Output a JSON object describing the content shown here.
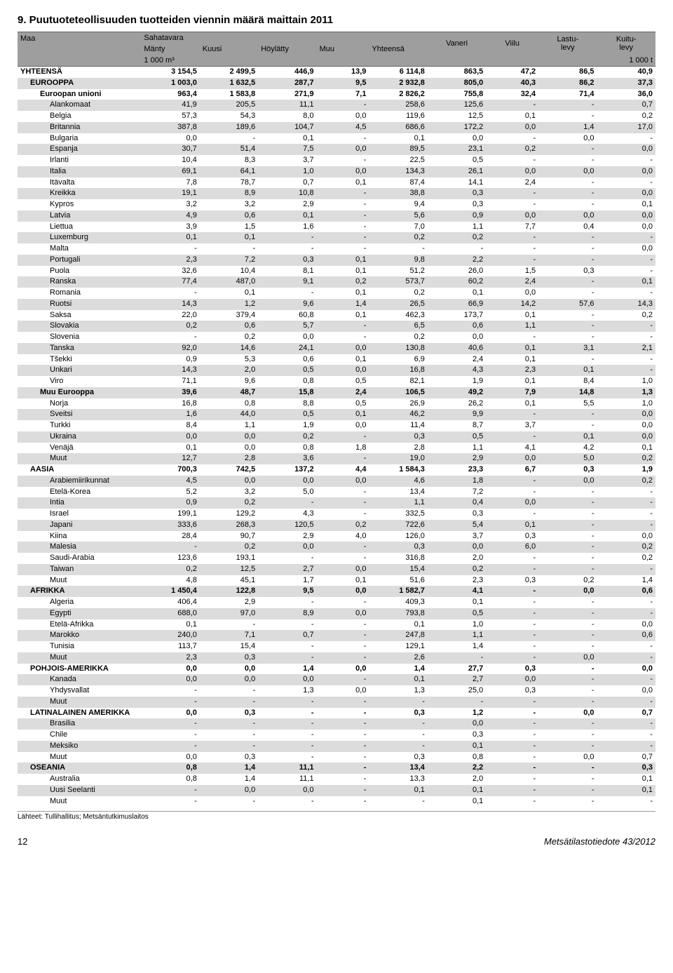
{
  "title": "9. Puutuoteteollisuuden tuotteiden viennin määrä maittain 2011",
  "header": {
    "group_sahatavara": "Sahatavara",
    "vaneri": "Vaneri",
    "viilu": "Viilu",
    "lastulevy": "Lastu-\nlevy",
    "kuitulevy": "Kuitu-\nlevy",
    "maa": "Maa",
    "manty": "Mänty",
    "kuusi": "Kuusi",
    "hoylatty": "Höylätty",
    "muu": "Muu",
    "yhteensa": "Yhteensä",
    "unit_left": "1 000 m³",
    "unit_right": "1 000 t"
  },
  "rows": [
    {
      "l": "YHTEENSÄ",
      "i": 0,
      "b": true,
      "z": false,
      "v": [
        "3 154,5",
        "2 499,5",
        "446,9",
        "13,9",
        "6 114,8",
        "863,5",
        "47,2",
        "86,5",
        "40,9"
      ]
    },
    {
      "l": "EUROOPPA",
      "i": 1,
      "b": true,
      "z": true,
      "v": [
        "1 003,0",
        "1 632,5",
        "287,7",
        "9,5",
        "2 932,8",
        "805,0",
        "40,3",
        "86,2",
        "37,3"
      ]
    },
    {
      "l": "Euroopan unioni",
      "i": 2,
      "b": true,
      "z": false,
      "v": [
        "963,4",
        "1 583,8",
        "271,9",
        "7,1",
        "2 826,2",
        "755,8",
        "32,4",
        "71,4",
        "36,0"
      ]
    },
    {
      "l": "Alankomaat",
      "i": 3,
      "b": false,
      "z": true,
      "v": [
        "41,9",
        "205,5",
        "11,1",
        "-",
        "258,6",
        "125,6",
        "-",
        "-",
        "0,7"
      ]
    },
    {
      "l": "Belgia",
      "i": 3,
      "b": false,
      "z": false,
      "v": [
        "57,3",
        "54,3",
        "8,0",
        "0,0",
        "119,6",
        "12,5",
        "0,1",
        "-",
        "0,2"
      ]
    },
    {
      "l": "Britannia",
      "i": 3,
      "b": false,
      "z": true,
      "v": [
        "387,8",
        "189,6",
        "104,7",
        "4,5",
        "686,6",
        "172,2",
        "0,0",
        "1,4",
        "17,0"
      ]
    },
    {
      "l": "Bulgaria",
      "i": 3,
      "b": false,
      "z": false,
      "v": [
        "0,0",
        "-",
        "0,1",
        "-",
        "0,1",
        "0,0",
        "-",
        "0,0",
        "-"
      ]
    },
    {
      "l": "Espanja",
      "i": 3,
      "b": false,
      "z": true,
      "v": [
        "30,7",
        "51,4",
        "7,5",
        "0,0",
        "89,5",
        "23,1",
        "0,2",
        "-",
        "0,0"
      ]
    },
    {
      "l": "Irlanti",
      "i": 3,
      "b": false,
      "z": false,
      "v": [
        "10,4",
        "8,3",
        "3,7",
        "-",
        "22,5",
        "0,5",
        "-",
        "-",
        "-"
      ]
    },
    {
      "l": "Italia",
      "i": 3,
      "b": false,
      "z": true,
      "v": [
        "69,1",
        "64,1",
        "1,0",
        "0,0",
        "134,3",
        "26,1",
        "0,0",
        "0,0",
        "0,0"
      ]
    },
    {
      "l": "Itävalta",
      "i": 3,
      "b": false,
      "z": false,
      "v": [
        "7,8",
        "78,7",
        "0,7",
        "0,1",
        "87,4",
        "14,1",
        "2,4",
        "-",
        "-"
      ]
    },
    {
      "l": "Kreikka",
      "i": 3,
      "b": false,
      "z": true,
      "v": [
        "19,1",
        "8,9",
        "10,8",
        "-",
        "38,8",
        "0,3",
        "-",
        "-",
        "0,0"
      ]
    },
    {
      "l": "Kypros",
      "i": 3,
      "b": false,
      "z": false,
      "v": [
        "3,2",
        "3,2",
        "2,9",
        "-",
        "9,4",
        "0,3",
        "-",
        "-",
        "0,1"
      ]
    },
    {
      "l": "Latvia",
      "i": 3,
      "b": false,
      "z": true,
      "v": [
        "4,9",
        "0,6",
        "0,1",
        "-",
        "5,6",
        "0,9",
        "0,0",
        "0,0",
        "0,0"
      ]
    },
    {
      "l": "Liettua",
      "i": 3,
      "b": false,
      "z": false,
      "v": [
        "3,9",
        "1,5",
        "1,6",
        "-",
        "7,0",
        "1,1",
        "7,7",
        "0,4",
        "0,0"
      ]
    },
    {
      "l": "Luxemburg",
      "i": 3,
      "b": false,
      "z": true,
      "v": [
        "0,1",
        "0,1",
        "-",
        "-",
        "0,2",
        "0,2",
        "-",
        "-",
        "-"
      ]
    },
    {
      "l": "Malta",
      "i": 3,
      "b": false,
      "z": false,
      "v": [
        "-",
        "-",
        "-",
        "-",
        "-",
        "-",
        "-",
        "-",
        "0,0"
      ]
    },
    {
      "l": "Portugali",
      "i": 3,
      "b": false,
      "z": true,
      "v": [
        "2,3",
        "7,2",
        "0,3",
        "0,1",
        "9,8",
        "2,2",
        "-",
        "-",
        "-"
      ]
    },
    {
      "l": "Puola",
      "i": 3,
      "b": false,
      "z": false,
      "v": [
        "32,6",
        "10,4",
        "8,1",
        "0,1",
        "51,2",
        "26,0",
        "1,5",
        "0,3",
        "-"
      ]
    },
    {
      "l": "Ranska",
      "i": 3,
      "b": false,
      "z": true,
      "v": [
        "77,4",
        "487,0",
        "9,1",
        "0,2",
        "573,7",
        "60,2",
        "2,4",
        "-",
        "0,1"
      ]
    },
    {
      "l": "Romania",
      "i": 3,
      "b": false,
      "z": false,
      "v": [
        "-",
        "0,1",
        "-",
        "0,1",
        "0,2",
        "0,1",
        "0,0",
        "-",
        "-"
      ]
    },
    {
      "l": "Ruotsi",
      "i": 3,
      "b": false,
      "z": true,
      "v": [
        "14,3",
        "1,2",
        "9,6",
        "1,4",
        "26,5",
        "66,9",
        "14,2",
        "57,6",
        "14,3"
      ]
    },
    {
      "l": "Saksa",
      "i": 3,
      "b": false,
      "z": false,
      "v": [
        "22,0",
        "379,4",
        "60,8",
        "0,1",
        "462,3",
        "173,7",
        "0,1",
        "-",
        "0,2"
      ]
    },
    {
      "l": "Slovakia",
      "i": 3,
      "b": false,
      "z": true,
      "v": [
        "0,2",
        "0,6",
        "5,7",
        "-",
        "6,5",
        "0,6",
        "1,1",
        "-",
        "-"
      ]
    },
    {
      "l": "Slovenia",
      "i": 3,
      "b": false,
      "z": false,
      "v": [
        "-",
        "0,2",
        "0,0",
        "-",
        "0,2",
        "0,0",
        "-",
        "-",
        "-"
      ]
    },
    {
      "l": "Tanska",
      "i": 3,
      "b": false,
      "z": true,
      "v": [
        "92,0",
        "14,6",
        "24,1",
        "0,0",
        "130,8",
        "40,6",
        "0,1",
        "3,1",
        "2,1"
      ]
    },
    {
      "l": "Tšekki",
      "i": 3,
      "b": false,
      "z": false,
      "v": [
        "0,9",
        "5,3",
        "0,6",
        "0,1",
        "6,9",
        "2,4",
        "0,1",
        "-",
        "-"
      ]
    },
    {
      "l": "Unkari",
      "i": 3,
      "b": false,
      "z": true,
      "v": [
        "14,3",
        "2,0",
        "0,5",
        "0,0",
        "16,8",
        "4,3",
        "2,3",
        "0,1",
        "-"
      ]
    },
    {
      "l": "Viro",
      "i": 3,
      "b": false,
      "z": false,
      "v": [
        "71,1",
        "9,6",
        "0,8",
        "0,5",
        "82,1",
        "1,9",
        "0,1",
        "8,4",
        "1,0"
      ]
    },
    {
      "l": "Muu Eurooppa",
      "i": 2,
      "b": true,
      "z": true,
      "v": [
        "39,6",
        "48,7",
        "15,8",
        "2,4",
        "106,5",
        "49,2",
        "7,9",
        "14,8",
        "1,3"
      ]
    },
    {
      "l": "Norja",
      "i": 3,
      "b": false,
      "z": false,
      "v": [
        "16,8",
        "0,8",
        "8,8",
        "0,5",
        "26,9",
        "26,2",
        "0,1",
        "5,5",
        "1,0"
      ]
    },
    {
      "l": "Sveitsi",
      "i": 3,
      "b": false,
      "z": true,
      "v": [
        "1,6",
        "44,0",
        "0,5",
        "0,1",
        "46,2",
        "9,9",
        "-",
        "-",
        "0,0"
      ]
    },
    {
      "l": "Turkki",
      "i": 3,
      "b": false,
      "z": false,
      "v": [
        "8,4",
        "1,1",
        "1,9",
        "0,0",
        "11,4",
        "8,7",
        "3,7",
        "-",
        "0,0"
      ]
    },
    {
      "l": "Ukraina",
      "i": 3,
      "b": false,
      "z": true,
      "v": [
        "0,0",
        "0,0",
        "0,2",
        "-",
        "0,3",
        "0,5",
        "-",
        "0,1",
        "0,0"
      ]
    },
    {
      "l": "Venäjä",
      "i": 3,
      "b": false,
      "z": false,
      "v": [
        "0,1",
        "0,0",
        "0,8",
        "1,8",
        "2,8",
        "1,1",
        "4,1",
        "4,2",
        "0,1"
      ]
    },
    {
      "l": "Muut",
      "i": 3,
      "b": false,
      "z": true,
      "v": [
        "12,7",
        "2,8",
        "3,6",
        "-",
        "19,0",
        "2,9",
        "0,0",
        "5,0",
        "0,2"
      ]
    },
    {
      "l": "AASIA",
      "i": 1,
      "b": true,
      "z": false,
      "v": [
        "700,3",
        "742,5",
        "137,2",
        "4,4",
        "1 584,3",
        "23,3",
        "6,7",
        "0,3",
        "1,9"
      ]
    },
    {
      "l": "Arabiemiirikunnat",
      "i": 3,
      "b": false,
      "z": true,
      "v": [
        "4,5",
        "0,0",
        "0,0",
        "0,0",
        "4,6",
        "1,8",
        "-",
        "0,0",
        "0,2"
      ]
    },
    {
      "l": "Etelä-Korea",
      "i": 3,
      "b": false,
      "z": false,
      "v": [
        "5,2",
        "3,2",
        "5,0",
        "-",
        "13,4",
        "7,2",
        "-",
        "-",
        "-"
      ]
    },
    {
      "l": "Intia",
      "i": 3,
      "b": false,
      "z": true,
      "v": [
        "0,9",
        "0,2",
        "-",
        "-",
        "1,1",
        "0,4",
        "0,0",
        "-",
        "-"
      ]
    },
    {
      "l": "Israel",
      "i": 3,
      "b": false,
      "z": false,
      "v": [
        "199,1",
        "129,2",
        "4,3",
        "-",
        "332,5",
        "0,3",
        "-",
        "-",
        "-"
      ]
    },
    {
      "l": "Japani",
      "i": 3,
      "b": false,
      "z": true,
      "v": [
        "333,6",
        "268,3",
        "120,5",
        "0,2",
        "722,6",
        "5,4",
        "0,1",
        "-",
        "-"
      ]
    },
    {
      "l": "Kiina",
      "i": 3,
      "b": false,
      "z": false,
      "v": [
        "28,4",
        "90,7",
        "2,9",
        "4,0",
        "126,0",
        "3,7",
        "0,3",
        "-",
        "0,0"
      ]
    },
    {
      "l": "Malesia",
      "i": 3,
      "b": false,
      "z": true,
      "v": [
        "-",
        "0,2",
        "0,0",
        "-",
        "0,3",
        "0,0",
        "6,0",
        "-",
        "0,2"
      ]
    },
    {
      "l": "Saudi-Arabia",
      "i": 3,
      "b": false,
      "z": false,
      "v": [
        "123,6",
        "193,1",
        "-",
        "-",
        "316,8",
        "2,0",
        "-",
        "-",
        "0,2"
      ]
    },
    {
      "l": "Taiwan",
      "i": 3,
      "b": false,
      "z": true,
      "v": [
        "0,2",
        "12,5",
        "2,7",
        "0,0",
        "15,4",
        "0,2",
        "-",
        "-",
        "-"
      ]
    },
    {
      "l": "Muut",
      "i": 3,
      "b": false,
      "z": false,
      "v": [
        "4,8",
        "45,1",
        "1,7",
        "0,1",
        "51,6",
        "2,3",
        "0,3",
        "0,2",
        "1,4"
      ]
    },
    {
      "l": "AFRIKKA",
      "i": 1,
      "b": true,
      "z": true,
      "v": [
        "1 450,4",
        "122,8",
        "9,5",
        "0,0",
        "1 582,7",
        "4,1",
        "-",
        "0,0",
        "0,6"
      ]
    },
    {
      "l": "Algeria",
      "i": 3,
      "b": false,
      "z": false,
      "v": [
        "406,4",
        "2,9",
        "-",
        "-",
        "409,3",
        "0,1",
        "-",
        "-",
        "-"
      ]
    },
    {
      "l": "Egypti",
      "i": 3,
      "b": false,
      "z": true,
      "v": [
        "688,0",
        "97,0",
        "8,9",
        "0,0",
        "793,8",
        "0,5",
        "-",
        "-",
        "-"
      ]
    },
    {
      "l": "Etelä-Afrikka",
      "i": 3,
      "b": false,
      "z": false,
      "v": [
        "0,1",
        "-",
        "-",
        "-",
        "0,1",
        "1,0",
        "-",
        "-",
        "0,0"
      ]
    },
    {
      "l": "Marokko",
      "i": 3,
      "b": false,
      "z": true,
      "v": [
        "240,0",
        "7,1",
        "0,7",
        "-",
        "247,8",
        "1,1",
        "-",
        "-",
        "0,6"
      ]
    },
    {
      "l": "Tunisia",
      "i": 3,
      "b": false,
      "z": false,
      "v": [
        "113,7",
        "15,4",
        "-",
        "-",
        "129,1",
        "1,4",
        "-",
        "-",
        "-"
      ]
    },
    {
      "l": "Muut",
      "i": 3,
      "b": false,
      "z": true,
      "v": [
        "2,3",
        "0,3",
        "-",
        "-",
        "2,6",
        "-",
        "-",
        "0,0",
        "-"
      ]
    },
    {
      "l": "POHJOIS-AMERIKKA",
      "i": 1,
      "b": true,
      "z": false,
      "v": [
        "0,0",
        "0,0",
        "1,4",
        "0,0",
        "1,4",
        "27,7",
        "0,3",
        "-",
        "0,0"
      ]
    },
    {
      "l": "Kanada",
      "i": 3,
      "b": false,
      "z": true,
      "v": [
        "0,0",
        "0,0",
        "0,0",
        "-",
        "0,1",
        "2,7",
        "0,0",
        "-",
        "-"
      ]
    },
    {
      "l": "Yhdysvallat",
      "i": 3,
      "b": false,
      "z": false,
      "v": [
        "-",
        "-",
        "1,3",
        "0,0",
        "1,3",
        "25,0",
        "0,3",
        "-",
        "0,0"
      ]
    },
    {
      "l": "Muut",
      "i": 3,
      "b": false,
      "z": true,
      "v": [
        "-",
        "-",
        "-",
        "-",
        "-",
        "-",
        "-",
        "-",
        "-"
      ]
    },
    {
      "l": "LATINALAINEN AMERIKKA",
      "i": 1,
      "b": true,
      "z": false,
      "v": [
        "0,0",
        "0,3",
        "-",
        "-",
        "0,3",
        "1,2",
        "-",
        "0,0",
        "0,7"
      ]
    },
    {
      "l": "Brasilia",
      "i": 3,
      "b": false,
      "z": true,
      "v": [
        "-",
        "-",
        "-",
        "-",
        "-",
        "0,0",
        "-",
        "-",
        "-"
      ]
    },
    {
      "l": "Chile",
      "i": 3,
      "b": false,
      "z": false,
      "v": [
        "-",
        "-",
        "-",
        "-",
        "-",
        "0,3",
        "-",
        "-",
        "-"
      ]
    },
    {
      "l": "Meksiko",
      "i": 3,
      "b": false,
      "z": true,
      "v": [
        "-",
        "-",
        "-",
        "-",
        "-",
        "0,1",
        "-",
        "-",
        "-"
      ]
    },
    {
      "l": "Muut",
      "i": 3,
      "b": false,
      "z": false,
      "v": [
        "0,0",
        "0,3",
        "-",
        "-",
        "0,3",
        "0,8",
        "-",
        "0,0",
        "0,7"
      ]
    },
    {
      "l": "OSEANIA",
      "i": 1,
      "b": true,
      "z": true,
      "v": [
        "0,8",
        "1,4",
        "11,1",
        "-",
        "13,4",
        "2,2",
        "-",
        "-",
        "0,3"
      ]
    },
    {
      "l": "Australia",
      "i": 3,
      "b": false,
      "z": false,
      "v": [
        "0,8",
        "1,4",
        "11,1",
        "-",
        "13,3",
        "2,0",
        "-",
        "-",
        "0,1"
      ]
    },
    {
      "l": "Uusi Seelanti",
      "i": 3,
      "b": false,
      "z": true,
      "v": [
        "-",
        "0,0",
        "0,0",
        "-",
        "0,1",
        "0,1",
        "-",
        "-",
        "0,1"
      ]
    },
    {
      "l": "Muut",
      "i": 3,
      "b": false,
      "z": false,
      "v": [
        "-",
        "-",
        "-",
        "-",
        "-",
        "0,1",
        "-",
        "-",
        "-"
      ]
    }
  ],
  "footnote": "Lähteet: Tullihallitus; Metsäntutkimuslaitos",
  "footer_page": "12",
  "footer_src": "Metsätilastotiedote 43/2012",
  "colors": {
    "header_bg": "#9e9e9e",
    "zebra_bg": "#dcdcdc",
    "text": "#000000",
    "bg": "#ffffff"
  }
}
